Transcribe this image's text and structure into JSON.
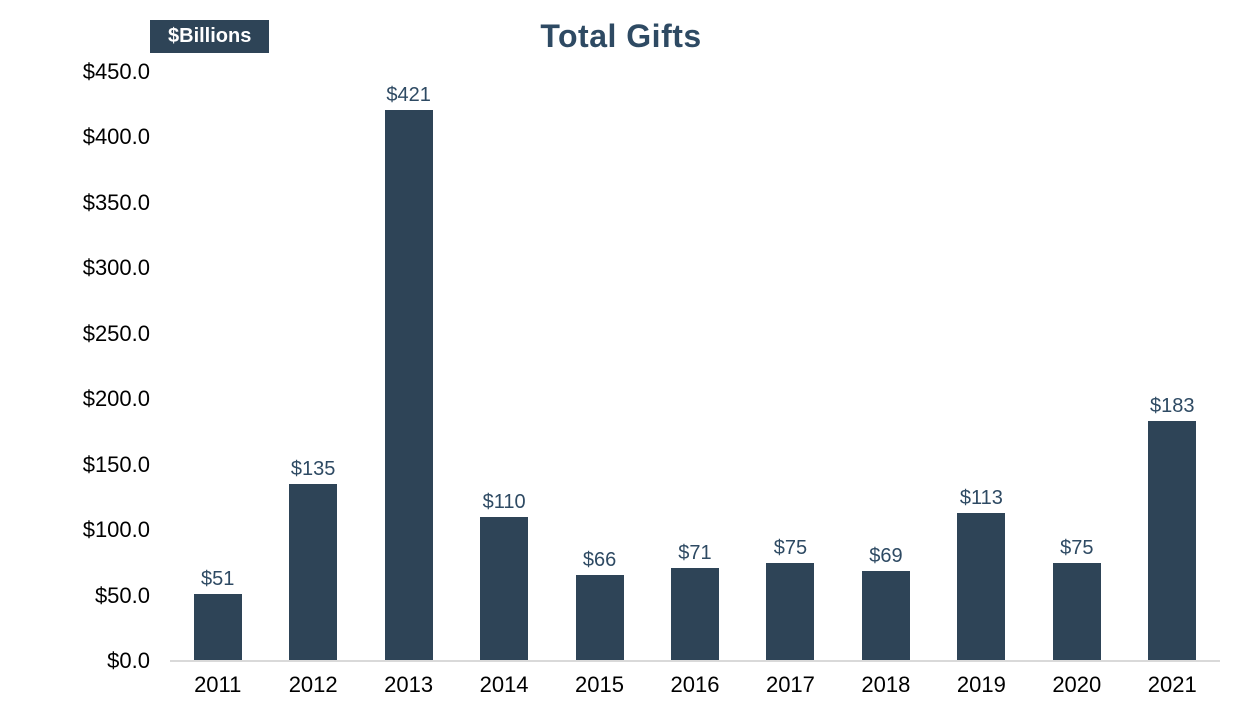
{
  "chart_data": {
    "type": "bar",
    "title": "Total Gifts",
    "units_badge": "$Billions",
    "categories": [
      "2011",
      "2012",
      "2013",
      "2014",
      "2015",
      "2016",
      "2017",
      "2018",
      "2019",
      "2020",
      "2021"
    ],
    "values": [
      51,
      135,
      421,
      110,
      66,
      71,
      75,
      69,
      113,
      75,
      183
    ],
    "bar_labels": [
      "$51",
      "$135",
      "$421",
      "$110",
      "$66",
      "$71",
      "$75",
      "$69",
      "$113",
      "$75",
      "$183"
    ],
    "xlabel": "",
    "ylabel": "$Billions",
    "ylim": [
      0,
      450
    ],
    "y_tick_step": 50,
    "y_tick_labels": [
      "$450.0",
      "$400.0",
      "$350.0",
      "$300.0",
      "$250.0",
      "$200.0",
      "$150.0",
      "$100.0",
      "$50.0",
      "$0.0"
    ],
    "grid": false,
    "legend_position": "none",
    "colors": {
      "bar": "#2e4457",
      "title_text": "#2e4a63",
      "bar_label_text": "#2e4a63",
      "axis_text": "#000000",
      "badge_background": "#2e4457",
      "badge_text": "#ffffff",
      "baseline": "#d9d9d9",
      "background": "#ffffff"
    }
  }
}
